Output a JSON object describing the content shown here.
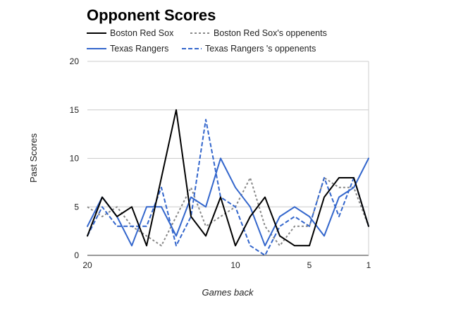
{
  "chart_data": {
    "type": "line",
    "title": "Opponent Scores",
    "xlabel": "Games back",
    "ylabel": "Past Scores",
    "x": [
      20,
      19,
      18,
      17,
      16,
      15,
      14,
      13,
      12,
      11,
      10,
      9,
      8,
      7,
      6,
      5,
      4,
      3,
      2,
      1
    ],
    "x_tick_labels": [
      "20",
      "10",
      "5",
      "1"
    ],
    "x_ticks": [
      20,
      10,
      5,
      1
    ],
    "x_reversed": true,
    "ylim": [
      0,
      20
    ],
    "y_ticks": [
      0,
      5,
      10,
      15,
      20
    ],
    "grid": true,
    "legend_position": "top",
    "series": [
      {
        "name": "Boston Red Sox",
        "color": "#000000",
        "dash": "solid",
        "values": [
          2,
          6,
          4,
          5,
          1,
          8,
          15,
          4,
          2,
          6,
          1,
          4,
          6,
          2,
          1,
          1,
          6,
          8,
          8,
          3
        ]
      },
      {
        "name": "Boston Red Sox's oppenents",
        "color": "#888888",
        "dash": "dotted",
        "values": [
          5,
          4,
          5,
          3,
          2,
          1,
          4,
          7,
          3,
          4,
          5,
          8,
          3,
          1,
          3,
          3,
          8,
          7,
          7,
          3
        ]
      },
      {
        "name": "Texas Rangers",
        "color": "#3366cc",
        "dash": "solid",
        "values": [
          3,
          6,
          4,
          1,
          5,
          5,
          2,
          6,
          5,
          10,
          7,
          5,
          1,
          4,
          5,
          4,
          2,
          6,
          7,
          10
        ]
      },
      {
        "name": "Texas Rangers 's oppenents",
        "color": "#3366cc",
        "dash": "dashed",
        "values": [
          2,
          5,
          3,
          3,
          3,
          7,
          1,
          4,
          14,
          6,
          5,
          1,
          0,
          3,
          4,
          3,
          8,
          4,
          8,
          3
        ]
      }
    ]
  }
}
